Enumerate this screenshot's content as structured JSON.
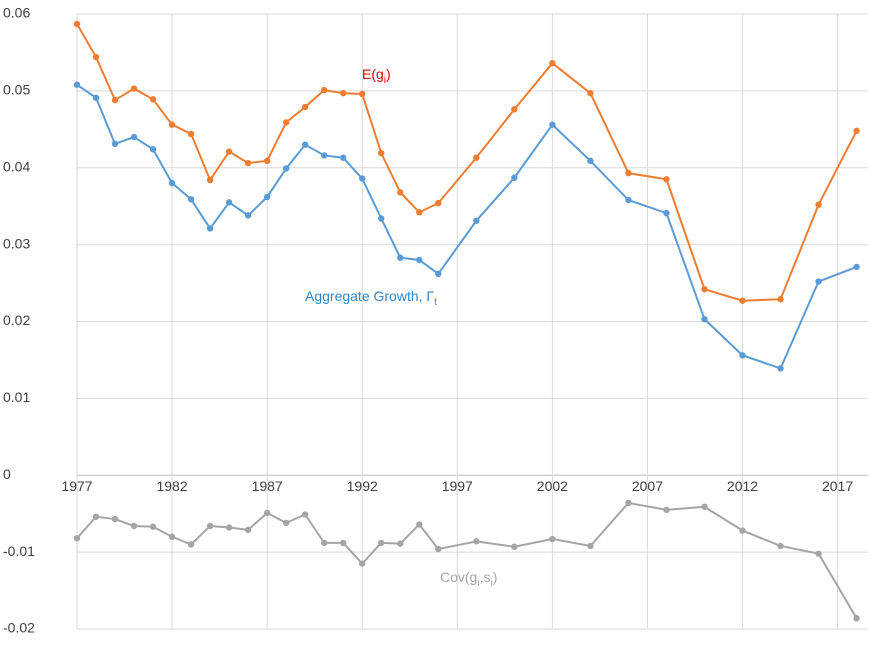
{
  "chart_data": {
    "type": "line",
    "x": [
      1977,
      1978,
      1979,
      1980,
      1981,
      1982,
      1983,
      1984,
      1985,
      1986,
      1987,
      1988,
      1989,
      1990,
      1991,
      1992,
      1993,
      1994,
      1995,
      1996,
      1998,
      2000,
      2002,
      2004,
      2006,
      2008,
      2010,
      2012,
      2014,
      2016,
      2018
    ],
    "series": [
      {
        "label_parts": [
          "E(g",
          "i",
          ")"
        ],
        "color": "#ED7D31",
        "label_color": "#E00000",
        "values": [
          0.0587,
          0.0544,
          0.0488,
          0.0503,
          0.0489,
          0.0456,
          0.0444,
          0.0384,
          0.0421,
          0.0406,
          0.0409,
          0.0459,
          0.0479,
          0.0501,
          0.0497,
          0.0496,
          0.0419,
          0.0368,
          0.0342,
          0.0354,
          0.0413,
          0.0476,
          0.0536,
          0.0497,
          0.0393,
          0.0385,
          0.0242,
          0.0227,
          0.0229,
          0.0352,
          0.0448
        ]
      },
      {
        "label_parts": [
          "Aggregate Growth, Γ",
          "t"
        ],
        "color": "#5B9BD5",
        "label_color": "#2E86C8",
        "values": [
          0.0508,
          0.0491,
          0.0431,
          0.044,
          0.0424,
          0.038,
          0.0359,
          0.0321,
          0.0355,
          0.0338,
          0.0362,
          0.0399,
          0.043,
          0.0416,
          0.0413,
          0.0386,
          0.0334,
          0.0283,
          0.028,
          0.0262,
          0.0331,
          0.0387,
          0.0456,
          0.0409,
          0.0358,
          0.0341,
          0.0203,
          0.0156,
          0.0139,
          0.0252,
          0.0271
        ]
      },
      {
        "label_parts": [
          "Cov(g",
          "i",
          ",s",
          "i",
          ")"
        ],
        "color": "#A5A5A5",
        "label_color": "#A5A5A5",
        "values": [
          -0.0082,
          -0.0054,
          -0.0057,
          -0.0066,
          -0.0067,
          -0.008,
          -0.009,
          -0.0066,
          -0.0068,
          -0.0071,
          -0.0049,
          -0.0062,
          -0.0051,
          -0.0088,
          -0.0088,
          -0.0115,
          -0.0088,
          -0.0089,
          -0.0064,
          -0.0096,
          -0.0086,
          -0.0093,
          -0.0083,
          -0.0092,
          -0.0036,
          -0.0045,
          -0.0041,
          -0.0072,
          -0.0092,
          -0.0102,
          -0.0186
        ]
      }
    ],
    "xlim": [
      1977,
      2018.6
    ],
    "xticks": [
      1977,
      1982,
      1987,
      1992,
      1997,
      2002,
      2007,
      2012,
      2017
    ],
    "ylim": [
      -0.02,
      0.06
    ],
    "yticks": [
      -0.02,
      -0.01,
      0,
      0.01,
      0.02,
      0.03,
      0.04,
      0.05,
      0.06
    ],
    "grid": true
  }
}
